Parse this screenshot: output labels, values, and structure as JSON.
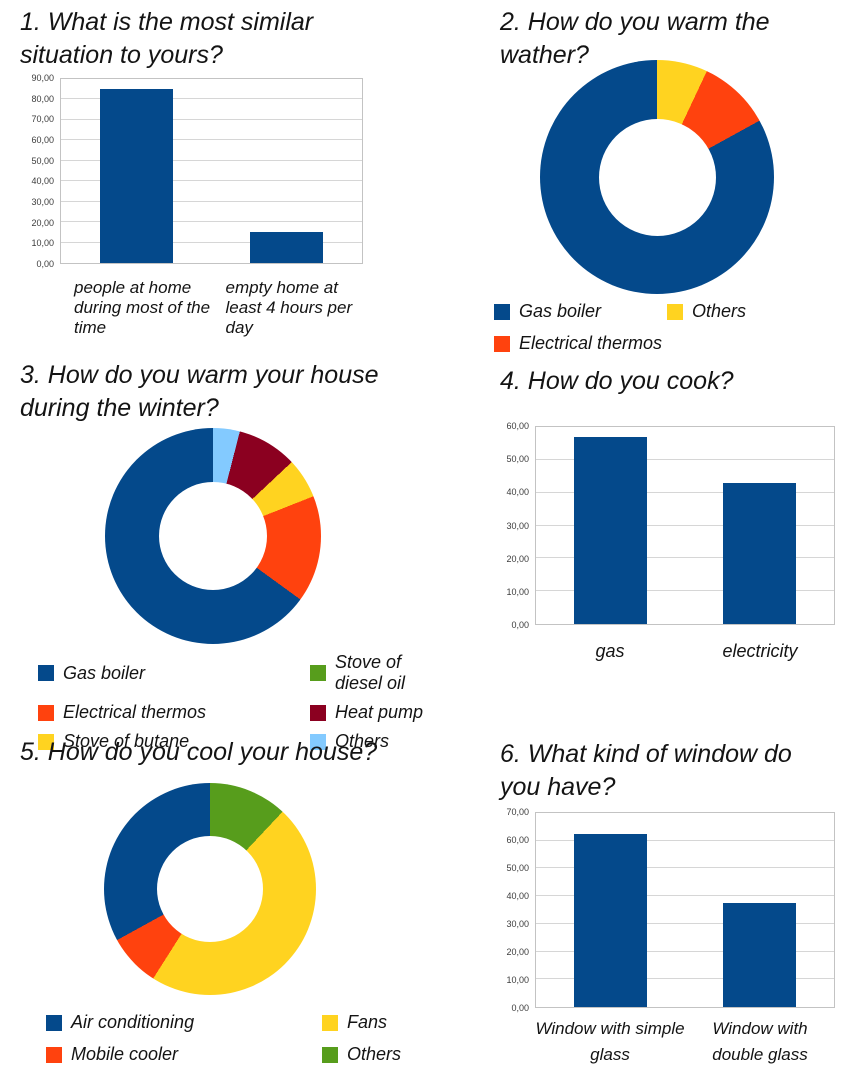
{
  "colors": {
    "blue": "#04498B",
    "orange": "#FF420E",
    "yellow": "#FFD320",
    "green": "#579D1C",
    "maroon": "#8B0020",
    "light_blue": "#83CAFF",
    "grid": "#D6D6D6",
    "plot_border": "#C3C3C3",
    "tick_text": "#3C3C3C",
    "text": "#141414"
  },
  "chart_data": [
    {
      "id": "q1",
      "type": "bar",
      "title": "1. What is the most similar situation to yours?",
      "categories": [
        "people at home during most of the time",
        "empty home at least 4 hours per day"
      ],
      "values": [
        85,
        15
      ],
      "ylim": [
        0,
        90
      ],
      "ytick_step": 10,
      "ytick_labels": [
        "0,00",
        "10,00",
        "20,00",
        "30,00",
        "40,00",
        "50,00",
        "60,00",
        "70,00",
        "80,00",
        "90,00"
      ],
      "bar_color": "blue",
      "grid": true,
      "legend": false,
      "label_align": "left"
    },
    {
      "id": "q2",
      "type": "donut",
      "title": "2. How do you warm the wather?",
      "series": [
        {
          "name": "Gas boiler",
          "value": 83,
          "color": "blue"
        },
        {
          "name": "Electrical thermos",
          "value": 10,
          "color": "orange"
        },
        {
          "name": "Others",
          "value": 7,
          "color": "yellow"
        }
      ],
      "unit": "%",
      "start_angle": "top",
      "direction": "counterclockwise",
      "hole_ratio": 0.5,
      "legend_position": "bottom",
      "legend_columns": 2
    },
    {
      "id": "q3",
      "type": "donut",
      "title": "3. How do you warm your house during the winter?",
      "series": [
        {
          "name": "Gas boiler",
          "value": 65,
          "color": "blue"
        },
        {
          "name": "Electrical thermos",
          "value": 16,
          "color": "orange"
        },
        {
          "name": "Stove of butane",
          "value": 6,
          "color": "yellow"
        },
        {
          "name": "Stove of diesel oil",
          "value": 0,
          "color": "green"
        },
        {
          "name": "Heat pump",
          "value": 9,
          "color": "maroon"
        },
        {
          "name": "Others",
          "value": 4,
          "color": "light_blue"
        }
      ],
      "unit": "%",
      "start_angle": "top",
      "direction": "counterclockwise",
      "hole_ratio": 0.5,
      "legend_position": "bottom",
      "legend_columns": 2
    },
    {
      "id": "q4",
      "type": "bar",
      "title": "4. How do you cook?",
      "categories": [
        "gas",
        "electricity"
      ],
      "values": [
        57,
        43
      ],
      "ylim": [
        0,
        60
      ],
      "ytick_step": 10,
      "ytick_labels": [
        "0,00",
        "10,00",
        "20,00",
        "30,00",
        "40,00",
        "50,00",
        "60,00"
      ],
      "bar_color": "blue",
      "grid": true,
      "legend": false,
      "label_align": "center"
    },
    {
      "id": "q5",
      "type": "donut",
      "title": "5. How do you cool your house?",
      "series": [
        {
          "name": "Air conditioning",
          "value": 33,
          "color": "blue"
        },
        {
          "name": "Mobile cooler",
          "value": 8,
          "color": "orange"
        },
        {
          "name": "Fans",
          "value": 47,
          "color": "yellow"
        },
        {
          "name": "Others",
          "value": 12,
          "color": "green"
        }
      ],
      "unit": "%",
      "start_angle": "top",
      "direction": "counterclockwise",
      "hole_ratio": 0.5,
      "legend_position": "bottom",
      "legend_columns": 2
    },
    {
      "id": "q6",
      "type": "bar",
      "title": "6. What kind of window do you have?",
      "categories": [
        "Window with simple glass",
        "Window with double glass"
      ],
      "values": [
        62.5,
        37.5
      ],
      "ylim": [
        0,
        70
      ],
      "ytick_step": 10,
      "ytick_labels": [
        "0,00",
        "10,00",
        "20,00",
        "30,00",
        "40,00",
        "50,00",
        "60,00",
        "70,00"
      ],
      "bar_color": "blue",
      "grid": true,
      "legend": false,
      "label_align": "center"
    }
  ]
}
